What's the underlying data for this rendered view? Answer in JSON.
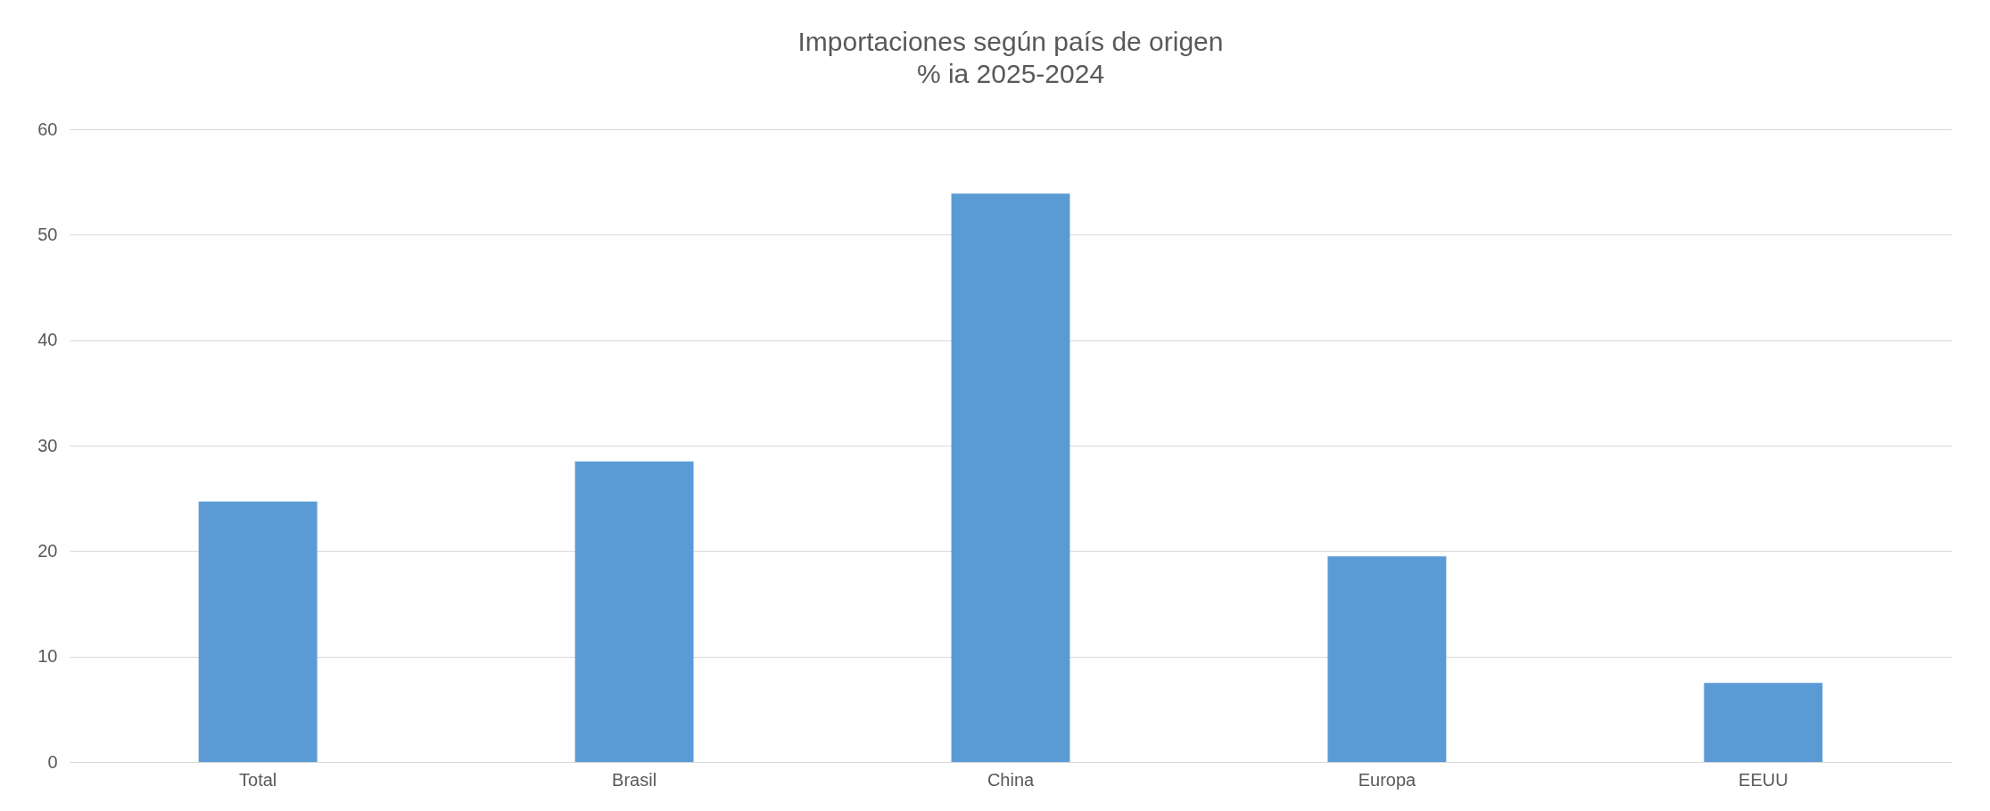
{
  "chart_data": {
    "type": "bar",
    "title": "Importaciones según país de origen",
    "subtitle": "% ia 2025-2024",
    "categories": [
      "Total",
      "Brasil",
      "China",
      "Europa",
      "EEUU"
    ],
    "values": [
      24.7,
      28.5,
      53.9,
      19.5,
      7.5
    ],
    "color": "#5b9bd5",
    "ylim": [
      0,
      60
    ],
    "yticks": [
      0,
      10,
      20,
      30,
      40,
      50,
      60
    ],
    "grid": "y"
  }
}
